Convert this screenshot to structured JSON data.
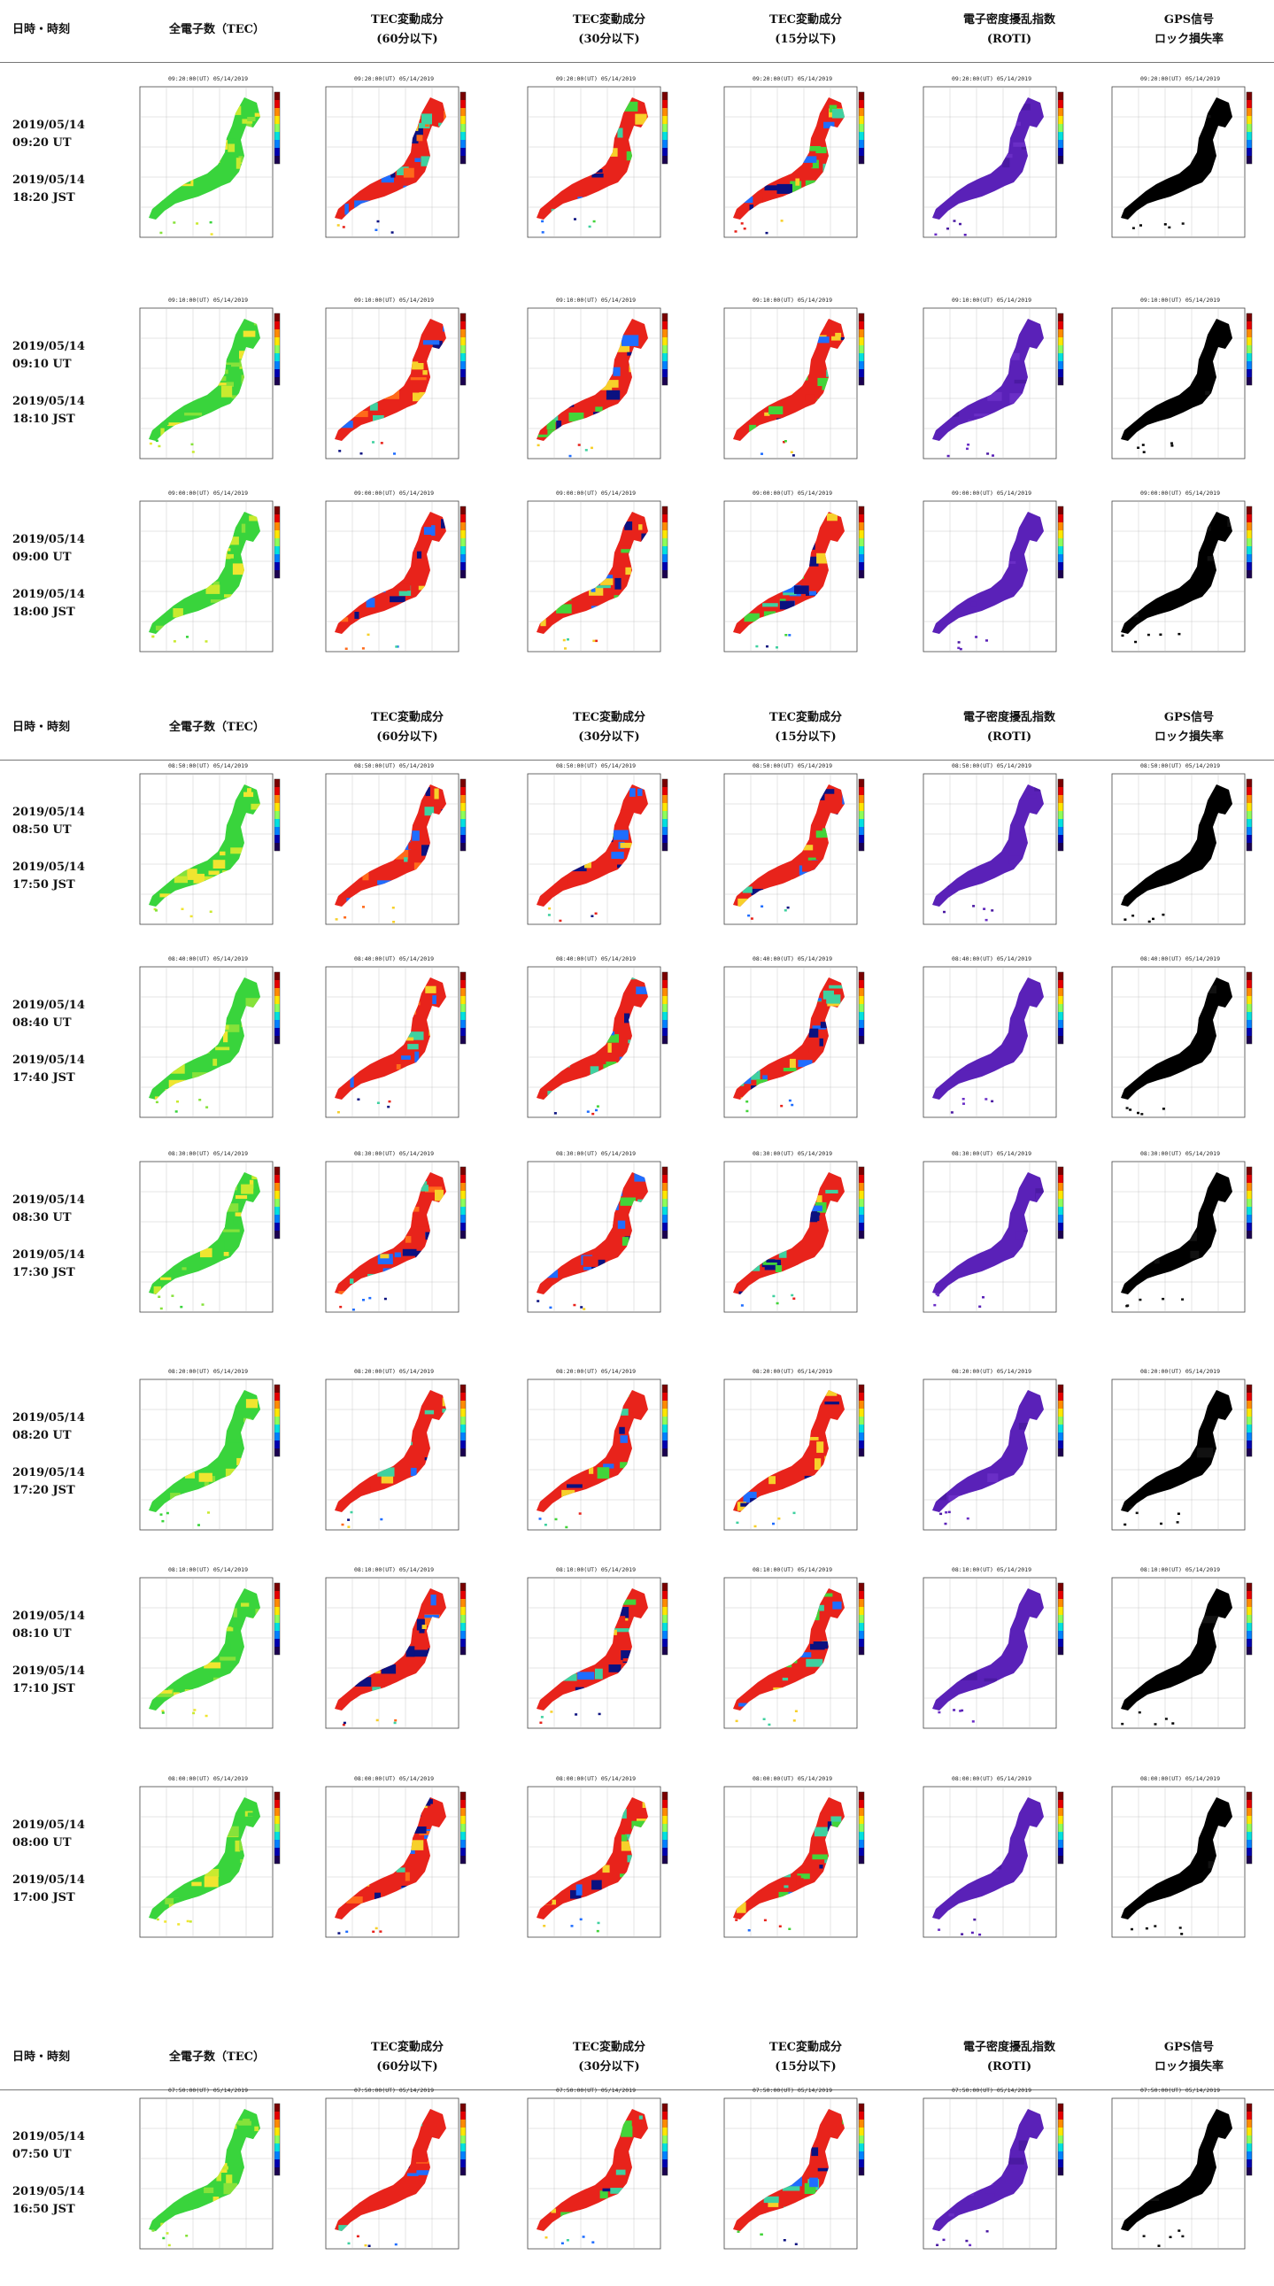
{
  "headers": {
    "datetime": "日時・時刻",
    "tec": "全電子数（TEC）",
    "dtec60": [
      "TEC変動成分",
      "(60分以下)"
    ],
    "dtec30": [
      "TEC変動成分",
      "(30分以下)"
    ],
    "dtec15": [
      "TEC変動成分",
      "(15分以下)"
    ],
    "roti": [
      "電子密度擾乱指数",
      "(ROTI)"
    ],
    "lol": [
      "GPS信号",
      "ロック損失率"
    ]
  },
  "rows": [
    {
      "ut": [
        "2019/05/14",
        "09:20 UT"
      ],
      "jst": [
        "2019/05/14",
        "18:20 JST"
      ]
    },
    {
      "ut": [
        "2019/05/14",
        "09:10 UT"
      ],
      "jst": [
        "2019/05/14",
        "18:10 JST"
      ]
    },
    {
      "ut": [
        "2019/05/14",
        "09:00 UT"
      ],
      "jst": [
        "2019/05/14",
        "18:00 JST"
      ]
    },
    {
      "ut": [
        "2019/05/14",
        "08:50 UT"
      ],
      "jst": [
        "2019/05/14",
        "17:50 JST"
      ]
    },
    {
      "ut": [
        "2019/05/14",
        "08:40 UT"
      ],
      "jst": [
        "2019/05/14",
        "17:40 JST"
      ]
    },
    {
      "ut": [
        "2019/05/14",
        "08:30 UT"
      ],
      "jst": [
        "2019/05/14",
        "17:30 JST"
      ]
    },
    {
      "ut": [
        "2019/05/14",
        "08:20 UT"
      ],
      "jst": [
        "2019/05/14",
        "17:20 JST"
      ]
    },
    {
      "ut": [
        "2019/05/14",
        "08:10 UT"
      ],
      "jst": [
        "2019/05/14",
        "17:10 JST"
      ]
    },
    {
      "ut": [
        "2019/05/14",
        "08:00 UT"
      ],
      "jst": [
        "2019/05/14",
        "17:00 JST"
      ]
    },
    {
      "ut": [
        "2019/05/14",
        "07:50 UT"
      ],
      "jst": [
        "2019/05/14",
        "16:50 JST"
      ]
    }
  ],
  "map_captions": [
    "09:20:00(UT) 05/14/2019",
    "09:10:00(UT) 05/14/2019",
    "09:00:00(UT) 05/14/2019",
    "08:50:00(UT) 05/14/2019",
    "08:40:00(UT) 05/14/2019",
    "08:30:00(UT) 05/14/2019",
    "08:20:00(UT) 05/14/2019",
    "08:10:00(UT) 05/14/2019",
    "08:00:00(UT) 05/14/2019",
    "07:50:00(UT) 05/14/2019"
  ],
  "map_columns": [
    {
      "key": "tec",
      "scheme": "tec",
      "colors": [
        "#39d43c",
        "#86e23a",
        "#c9ea2f",
        "#f0e530"
      ]
    },
    {
      "key": "dtec60",
      "scheme": "dtec",
      "colors": [
        "#e8231b",
        "#f7d02a",
        "#3fd1a0",
        "#1f6dff",
        "#0b1180",
        "#ff6a1a"
      ]
    },
    {
      "key": "dtec30",
      "scheme": "dtec",
      "colors": [
        "#e8231b",
        "#f7d02a",
        "#3fd1a0",
        "#1f6dff",
        "#0b1180",
        "#43d43a"
      ]
    },
    {
      "key": "dtec15",
      "scheme": "dtec",
      "colors": [
        "#e8231b",
        "#f7d02a",
        "#3fd1a0",
        "#1f6dff",
        "#0b1180",
        "#43d43a"
      ]
    },
    {
      "key": "roti",
      "scheme": "roti",
      "colors": [
        "#5a21b8",
        "#6a2ec6",
        "#4b1aa3"
      ]
    },
    {
      "key": "lol",
      "scheme": "lol",
      "colors": [
        "#000000",
        "#111111"
      ]
    }
  ],
  "colorbar_colors": [
    "#7a0000",
    "#e60000",
    "#ff8a00",
    "#ffe600",
    "#8cff5a",
    "#00e0e0",
    "#0080ff",
    "#0000b0",
    "#1a0050"
  ]
}
